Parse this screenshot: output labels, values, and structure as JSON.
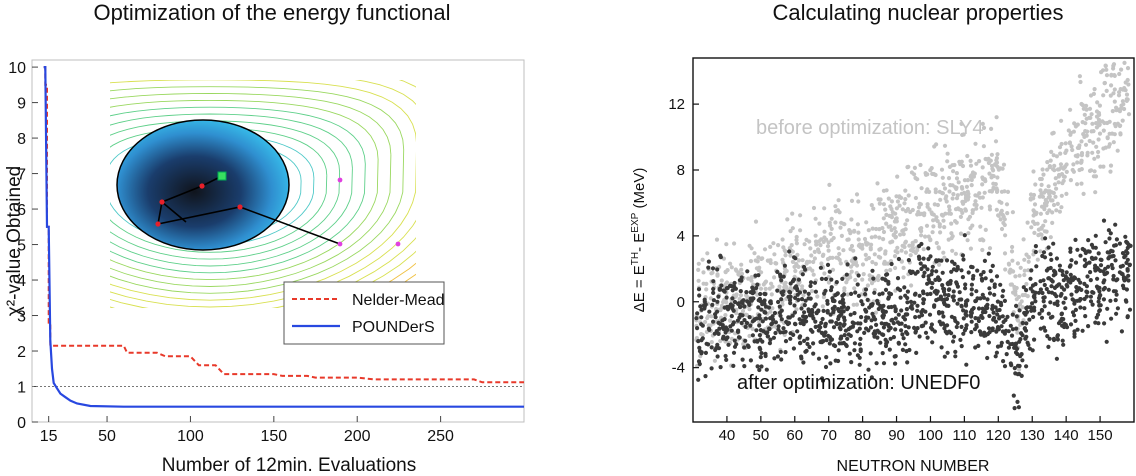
{
  "colors": {
    "nelder": "#e8392a",
    "pounders": "#2848e0",
    "before": "#c4c4c4",
    "after": "#3a3a3a",
    "refline": "#777777"
  },
  "left_panel": {
    "title": "Optimization of the energy functional",
    "inset": {
      "description_icon": "contour-plot-with-simplex-path-icon",
      "path_points": [
        "start",
        "step-1",
        "step-2",
        "step-3",
        "step-4",
        "optimum"
      ]
    }
  },
  "right_panel": {
    "title": "Calculating nuclear properties"
  },
  "chart_data": [
    {
      "type": "line",
      "title": "Optimization of the energy functional",
      "xlabel": "Number of 12min. Evaluations",
      "ylabel": "χ²-value Obtained",
      "xlim": [
        5,
        300
      ],
      "ylim": [
        0,
        10.2
      ],
      "xticks": [
        15,
        50,
        100,
        150,
        200,
        250
      ],
      "yticks": [
        0,
        1,
        2,
        3,
        4,
        5,
        6,
        7,
        8,
        9,
        10
      ],
      "reference_line": {
        "y": 1,
        "style": "dotted"
      },
      "legend": {
        "position": "center-right"
      },
      "series": [
        {
          "name": "Nelder-Mead",
          "style": "dashed",
          "x": [
            12,
            13,
            13,
            14,
            14,
            15,
            15,
            16,
            16,
            60,
            62,
            80,
            85,
            100,
            105,
            115,
            120,
            150,
            155,
            170,
            175,
            200,
            210,
            270,
            275,
            300
          ],
          "y": [
            10,
            10,
            9.5,
            9.5,
            5.5,
            5.5,
            2.8,
            2.8,
            2.15,
            2.15,
            1.95,
            1.95,
            1.85,
            1.85,
            1.6,
            1.6,
            1.35,
            1.35,
            1.3,
            1.3,
            1.25,
            1.25,
            1.2,
            1.2,
            1.12,
            1.12
          ]
        },
        {
          "name": "POUNDerS",
          "style": "solid",
          "x": [
            12,
            13,
            14,
            15,
            16,
            17,
            18,
            20,
            22,
            25,
            28,
            32,
            40,
            60,
            100,
            300
          ],
          "y": [
            10,
            10,
            5.5,
            5.5,
            2.3,
            1.5,
            1.1,
            0.95,
            0.8,
            0.7,
            0.6,
            0.52,
            0.45,
            0.43,
            0.43,
            0.43
          ]
        }
      ]
    },
    {
      "type": "scatter",
      "title": "Calculating nuclear properties",
      "xlabel": "NEUTRON NUMBER",
      "ylabel": "ΔE = E^TH - E^EXP (MeV)",
      "ylabel_parts": {
        "prefix": "ΔE = E",
        "th": "TH",
        "mid": "- E",
        "exp": "EXP",
        "suffix": " (MeV)"
      },
      "xlim": [
        30,
        160
      ],
      "ylim": [
        -7.3,
        14.8
      ],
      "xticks": [
        40,
        50,
        60,
        70,
        80,
        90,
        100,
        110,
        120,
        130,
        140,
        150
      ],
      "yticks": [
        -4,
        0,
        4,
        8,
        12
      ],
      "series": [
        {
          "name": "before optimization: SLY4",
          "label": "before optimization: SLY4",
          "trend": [
            [
              30,
              -1.0
            ],
            [
              40,
              0.2
            ],
            [
              50,
              0.8
            ],
            [
              60,
              1.5
            ],
            [
              70,
              3.0
            ],
            [
              80,
              2.2
            ],
            [
              90,
              4.5
            ],
            [
              100,
              5.5
            ],
            [
              110,
              6.5
            ],
            [
              120,
              7.5
            ],
            [
              126,
              -0.8
            ],
            [
              130,
              4.5
            ],
            [
              140,
              8.5
            ],
            [
              150,
              11.0
            ],
            [
              158,
              13.0
            ]
          ]
        },
        {
          "name": "after optimization: UNEDF0",
          "label_a": "after optimization:",
          "label_b": "UNEDF0",
          "trend": [
            [
              30,
              -1.5
            ],
            [
              40,
              -0.8
            ],
            [
              50,
              -1.2
            ],
            [
              60,
              -0.5
            ],
            [
              70,
              -1.5
            ],
            [
              80,
              -0.8
            ],
            [
              90,
              -1.0
            ],
            [
              100,
              0.5
            ],
            [
              110,
              0.0
            ],
            [
              120,
              -0.5
            ],
            [
              126,
              -3.5
            ],
            [
              130,
              0.0
            ],
            [
              140,
              0.5
            ],
            [
              150,
              1.5
            ],
            [
              158,
              2.5
            ]
          ]
        }
      ]
    }
  ]
}
